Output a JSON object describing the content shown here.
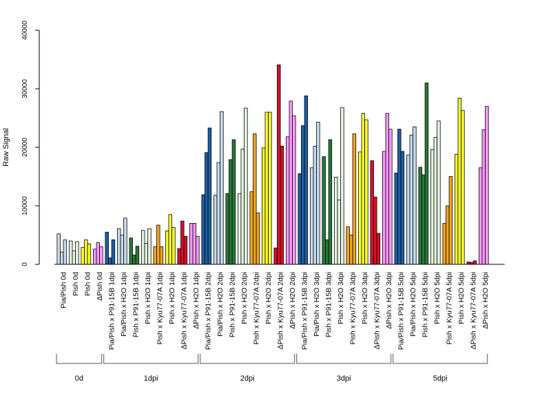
{
  "chart_data": {
    "type": "bar",
    "title": "",
    "xlabel": "",
    "ylabel": "Raw Signal",
    "ylim": [
      0,
      40000
    ],
    "yticks": [
      0,
      10000,
      20000,
      30000,
      40000
    ],
    "categories": [
      {
        "label": "Pia/Pish 0d",
        "color": "#c6dbef",
        "values": [
          5200,
          2100,
          4200
        ]
      },
      {
        "label": "Pish 0d",
        "color": "#e5f5e0",
        "values": [
          4000,
          2300,
          3900
        ]
      },
      {
        "label": "Pish 0d",
        "color": "#ffff33",
        "values": [
          2900,
          4200,
          3500
        ]
      },
      {
        "label": "ΔPish 0d",
        "color": "#ff99ff",
        "values": [
          2600,
          3700,
          3000
        ]
      },
      {
        "label": "Pia/Pish x P91-15B 1dpi",
        "color": "#1f5fa6",
        "values": [
          5500,
          1100,
          4200
        ]
      },
      {
        "label": "Pia/Pish x H2O 1dpi",
        "color": "#c6dbef",
        "values": [
          6100,
          5000,
          7900
        ]
      },
      {
        "label": "Pish x P91-15B 1dpi",
        "color": "#2a7a3b",
        "values": [
          4500,
          1600,
          3100
        ]
      },
      {
        "label": "Pish x H2O 1dpi",
        "color": "#e5f5e0",
        "values": [
          5800,
          3600,
          6100
        ]
      },
      {
        "label": "Pish x Kyu77-07A 1dpi",
        "color": "#f5a623",
        "values": [
          3000,
          6700,
          3000
        ]
      },
      {
        "label": "Pish x H2O 1dpi",
        "color": "#ffff33",
        "values": [
          5700,
          8500,
          6300
        ]
      },
      {
        "label": "ΔPish x Kyu77-07A 1dpi",
        "color": "#d7112a",
        "values": [
          2700,
          7400,
          4800
        ]
      },
      {
        "label": "ΔPish x H2O 1dpi",
        "color": "#ff99ff",
        "values": [
          7000,
          7000,
          4800
        ]
      },
      {
        "label": "Pia/Pish x P91-15B 2dpi",
        "color": "#1f5fa6",
        "values": [
          11900,
          19100,
          23300
        ]
      },
      {
        "label": "Pia/Pish x H2O 2dpi",
        "color": "#c6dbef",
        "values": [
          11800,
          17400,
          26100
        ]
      },
      {
        "label": "Pish x P91-15B 2dpi",
        "color": "#2a7a3b",
        "values": [
          12100,
          17900,
          21300
        ]
      },
      {
        "label": "Pish x H2O 2dpi",
        "color": "#e5f5e0",
        "values": [
          12100,
          19700,
          26700
        ]
      },
      {
        "label": "Pish x Kyu77-07A 2dpi",
        "color": "#f5a623",
        "values": [
          12400,
          22300,
          8800
        ]
      },
      {
        "label": "Pish x H2O 2dpi",
        "color": "#ffff33",
        "values": [
          19900,
          26000,
          26000
        ]
      },
      {
        "label": "ΔPish x Kyu77-07A 2dpi",
        "color": "#d7112a",
        "values": [
          2800,
          34100,
          20200
        ]
      },
      {
        "label": "ΔPish x H2O 2dpi",
        "color": "#ff99ff",
        "values": [
          21800,
          27900,
          25400
        ]
      },
      {
        "label": "Pia/Pish x P91-15B 3dpi",
        "color": "#1f5fa6",
        "values": [
          15500,
          23700,
          28800
        ]
      },
      {
        "label": "Pia/Pish x H2O 3dpi",
        "color": "#c6dbef",
        "values": [
          16500,
          20200,
          24300
        ]
      },
      {
        "label": "Pish x P91-15B 3dpi",
        "color": "#2a7a3b",
        "values": [
          18400,
          4200,
          21300
        ]
      },
      {
        "label": "Pish x H2O 3dpi",
        "color": "#e5f5e0",
        "values": [
          14900,
          11000,
          26800
        ]
      },
      {
        "label": "Pish x Kyu77-07A 3dpi",
        "color": "#f5a623",
        "values": [
          6400,
          5000,
          22300
        ]
      },
      {
        "label": "Pish x H2O 3dpi",
        "color": "#ffff33",
        "values": [
          19200,
          25800,
          24700
        ]
      },
      {
        "label": "ΔPish x Kyu77-07A 3dpi",
        "color": "#d7112a",
        "values": [
          17700,
          11500,
          5300
        ]
      },
      {
        "label": "ΔPish x H2O 3dpi",
        "color": "#ff99ff",
        "values": [
          19300,
          25800,
          23100
        ]
      },
      {
        "label": "Pia/Pish x P91-15B 5dpi",
        "color": "#1f5fa6",
        "values": [
          15600,
          23100,
          19300
        ]
      },
      {
        "label": "Pia/Pish x H2O 5dpi",
        "color": "#c6dbef",
        "values": [
          18700,
          22100,
          23500
        ]
      },
      {
        "label": "Pish x P91-15B 5dpi",
        "color": "#2a7a3b",
        "values": [
          16600,
          15300,
          31000
        ]
      },
      {
        "label": "Pish x H2O 5dpi",
        "color": "#e5f5e0",
        "values": [
          19600,
          21700,
          24500
        ]
      },
      {
        "label": "Pish x Kyu77-07A 5dpi",
        "color": "#f5a623",
        "values": [
          7000,
          10000,
          15000
        ]
      },
      {
        "label": "Pish x H2O 5dpi",
        "color": "#ffff33",
        "values": [
          18800,
          28400,
          26300
        ]
      },
      {
        "label": "ΔPish x Kyu77-07A 5dpi",
        "color": "#d7112a",
        "values": [
          400,
          300,
          600
        ]
      },
      {
        "label": "ΔPish x H2O 5dpi",
        "color": "#ff99ff",
        "values": [
          16500,
          23000,
          27000
        ]
      }
    ],
    "groups": [
      {
        "label": "0d",
        "first": 0,
        "last": 3
      },
      {
        "label": "1dpi",
        "first": 4,
        "last": 11
      },
      {
        "label": "2dpi",
        "first": 12,
        "last": 19
      },
      {
        "label": "3dpi",
        "first": 20,
        "last": 27
      },
      {
        "label": "5dpi",
        "first": 28,
        "last": 35
      }
    ],
    "grid": false,
    "legend": "none"
  }
}
